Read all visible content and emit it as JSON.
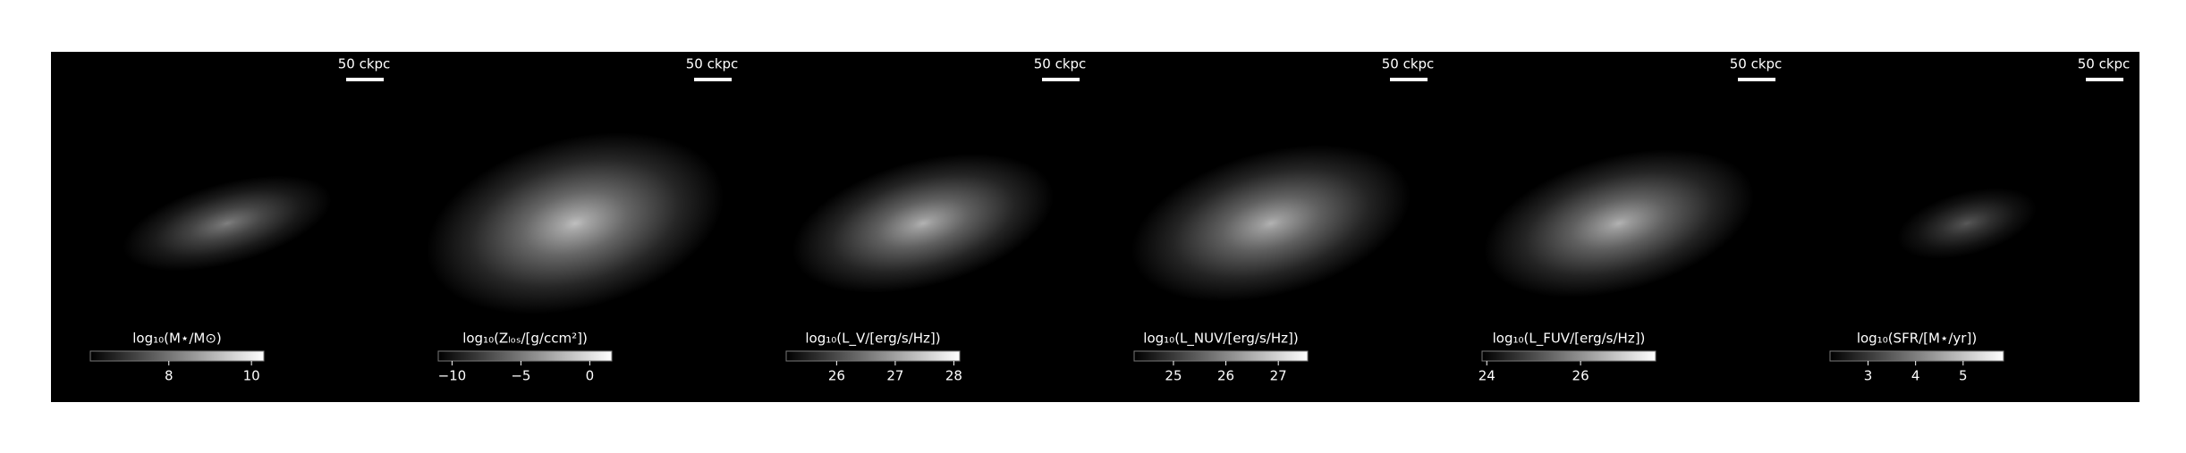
{
  "panels": [
    {
      "scale_bar": "50 ckpc",
      "colorbar": {
        "label": "log₁₀(M⋆/M⊙)",
        "lim": [
          6.1,
          10.3
        ],
        "ticks": [
          8,
          10
        ]
      }
    },
    {
      "scale_bar": "50 ckpc",
      "colorbar": {
        "label": "log₁₀(Zₗₒₛ/[g/ccm²])",
        "lim": [
          -11,
          1.6
        ],
        "ticks": [
          {
            "value": -10,
            "label": "−10"
          },
          {
            "value": -5,
            "label": "−5"
          },
          0
        ]
      }
    },
    {
      "scale_bar": "50 ckpc",
      "colorbar": {
        "label": "log₁₀(L_V/[erg/s/Hz])",
        "lim": [
          25.14,
          28.1
        ],
        "ticks": [
          26,
          27,
          28
        ]
      }
    },
    {
      "scale_bar": "50 ckpc",
      "colorbar": {
        "label": "log₁₀(L_NUV/[erg/s/Hz])",
        "lim": [
          24.25,
          27.56
        ],
        "ticks": [
          25,
          26,
          27
        ]
      }
    },
    {
      "scale_bar": "50 ckpc",
      "colorbar": {
        "label": "log₁₀(L_FUV/[erg/s/Hz])",
        "lim": [
          23.9,
          27.6
        ],
        "ticks": [
          24,
          26
        ]
      }
    },
    {
      "scale_bar": "50 ckpc",
      "colorbar": {
        "label": "log₁₀(SFR/[M⋆/yr])",
        "lim": [
          2.2,
          5.85
        ],
        "ticks": [
          3,
          4,
          5
        ]
      }
    }
  ]
}
